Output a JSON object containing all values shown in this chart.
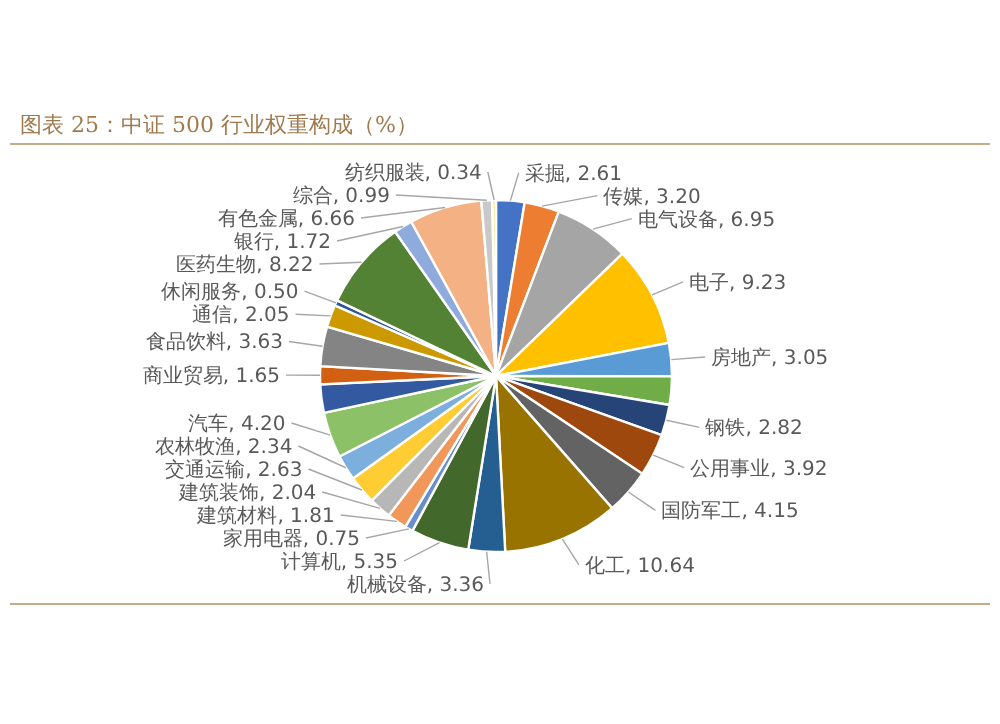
{
  "chart_data": {
    "type": "pie",
    "title": "图表 25：中证 500 行业权重构成（%）",
    "categories": [
      "采掘",
      "传媒",
      "电气设备",
      "电子",
      "房地产",
      null,
      "钢铁",
      "公用事业",
      "国防军工",
      "化工",
      "机械设备",
      "计算机",
      "家用电器",
      "建筑材料",
      "建筑装饰",
      "交通运输",
      "农林牧渔",
      "汽车",
      null,
      "商业贸易",
      "食品饮料",
      "通信",
      "休闲服务",
      "医药生物",
      "银行",
      "有色金属",
      "综合",
      "纺织服装"
    ],
    "values": [
      2.61,
      3.2,
      6.95,
      9.23,
      3.05,
      2.6,
      2.82,
      3.92,
      4.15,
      10.64,
      3.36,
      5.35,
      0.75,
      1.81,
      2.04,
      2.63,
      2.34,
      4.2,
      2.6,
      1.65,
      3.63,
      2.05,
      0.5,
      8.22,
      1.72,
      6.66,
      0.99,
      0.34
    ],
    "value_labels": [
      "2.61",
      "3.20",
      "6.95",
      "9.23",
      "3.05",
      null,
      "2.82",
      "3.92",
      "4.15",
      "10.64",
      "3.36",
      "5.35",
      "0.75",
      "1.81",
      "2.04",
      "2.63",
      "2.34",
      "4.20",
      null,
      "1.65",
      "3.63",
      "2.05",
      "0.50",
      "8.22",
      "1.72",
      "6.66",
      "0.99",
      "0.34"
    ],
    "colors": [
      "#4472c4",
      "#ed7d31",
      "#a5a5a5",
      "#ffc000",
      "#5b9bd5",
      "#70ad47",
      "#264478",
      "#9e480e",
      "#636363",
      "#997300",
      "#255e91",
      "#43682b",
      "#698ed0",
      "#f1975a",
      "#b7b7b7",
      "#ffcd33",
      "#7cafdd",
      "#8cc168",
      "#335aa1",
      "#d26012",
      "#848484",
      "#cc9a00",
      "#2f5597",
      "#548235",
      "#8faadc",
      "#f4b183",
      "#c9c9c9",
      "#ffe699"
    ],
    "legend": false
  }
}
